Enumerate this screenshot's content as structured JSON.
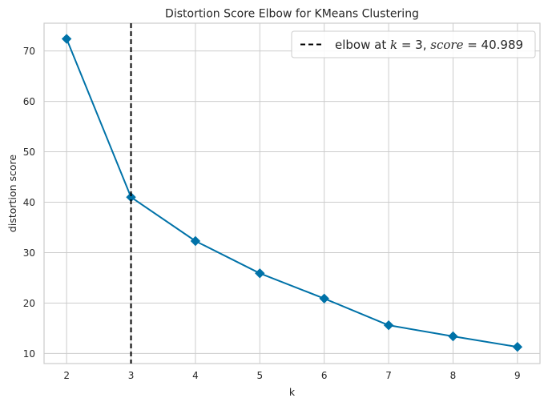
{
  "chart_data": {
    "type": "line",
    "title": "Distortion Score Elbow for KMeans Clustering",
    "xlabel": "k",
    "ylabel": "distortion score",
    "x": [
      2,
      3,
      4,
      5,
      6,
      7,
      8,
      9
    ],
    "series": [
      {
        "values": [
          72.4,
          41.0,
          32.3,
          25.9,
          20.9,
          15.6,
          13.4,
          11.3
        ],
        "color": "#0072a8",
        "marker": "diamond"
      }
    ],
    "x_ticks": [
      "2",
      "3",
      "4",
      "5",
      "6",
      "7",
      "8",
      "9"
    ],
    "y_ticks": [
      "10",
      "20",
      "30",
      "40",
      "50",
      "60",
      "70"
    ],
    "xlim": [
      1.65,
      9.35
    ],
    "ylim": [
      8.0,
      75.5
    ],
    "grid": true,
    "elbow": {
      "k": 3,
      "score": 40.989,
      "color": "#000000",
      "style": "dashed"
    },
    "legend": {
      "position": "top-right",
      "prefix": "elbow at ",
      "k_var": "k",
      "k_eq": " = 3, ",
      "score_var": "score",
      "score_eq": " = 40.989"
    }
  }
}
